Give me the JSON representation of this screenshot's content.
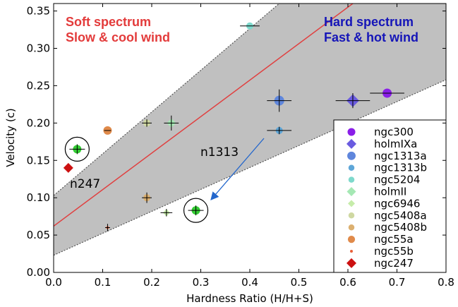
{
  "chart_data": {
    "type": "scatter",
    "title": "",
    "xlabel": "Hardness Ratio (H/H+S)",
    "ylabel": "Velocity (c)",
    "xlim": [
      0.0,
      0.8
    ],
    "ylim": [
      0.0,
      0.36
    ],
    "x_ticks": [
      0.0,
      0.1,
      0.2,
      0.3,
      0.4,
      0.5,
      0.6,
      0.7,
      0.8
    ],
    "x_tick_labels": [
      "0.0",
      "0.1",
      "0.2",
      "0.3",
      "0.4",
      "0.5",
      "0.6",
      "0.7",
      "0.8"
    ],
    "y_ticks": [
      0.0,
      0.05,
      0.1,
      0.15,
      0.2,
      0.25,
      0.3,
      0.35
    ],
    "y_tick_labels": [
      "0.00",
      "0.05",
      "0.10",
      "0.15",
      "0.20",
      "0.25",
      "0.30",
      "0.35"
    ],
    "grid": false,
    "legend_position": "bottom-right",
    "fit_line": {
      "color": "#e04040",
      "points": [
        [
          0.0,
          0.062
        ],
        [
          0.61,
          0.36
        ]
      ]
    },
    "band": {
      "color": "#c0c0c0",
      "upper": [
        [
          0.0,
          0.103
        ],
        [
          0.46,
          0.36
        ]
      ],
      "lower": [
        [
          0.0,
          0.023
        ],
        [
          0.8,
          0.258
        ]
      ]
    },
    "series": [
      {
        "name": "ngc300",
        "color": "#8a1ee8",
        "marker": "circle",
        "size": 6.5,
        "points": [
          {
            "x": 0.68,
            "y": 0.24,
            "xerr": 0.035,
            "yerr": 0.0
          }
        ]
      },
      {
        "name": "holmIXa",
        "color": "#6a5be0",
        "marker": "diamond",
        "size": 9,
        "points": [
          {
            "x": 0.61,
            "y": 0.23,
            "xerr": 0.035,
            "yerr": 0.01
          }
        ]
      },
      {
        "name": "ngc1313a",
        "color": "#5f86dc",
        "marker": "circle",
        "size": 7,
        "points": [
          {
            "x": 0.46,
            "y": 0.23,
            "xerr": 0.025,
            "yerr": 0.015
          }
        ]
      },
      {
        "name": "ngc1313b",
        "color": "#5ea6d8",
        "marker": "circle",
        "size": 5,
        "points": [
          {
            "x": 0.46,
            "y": 0.19,
            "xerr": 0.025,
            "yerr": 0.005
          }
        ]
      },
      {
        "name": "ngc5204",
        "color": "#7ed9cc",
        "marker": "circle",
        "size": 5,
        "points": [
          {
            "x": 0.4,
            "y": 0.33,
            "xerr": 0.02,
            "yerr": 0.0
          }
        ]
      },
      {
        "name": "holmII",
        "color": "#a5e8b4",
        "marker": "diamond",
        "size": 6.5,
        "points": [
          {
            "x": 0.24,
            "y": 0.2,
            "xerr": 0.015,
            "yerr": 0.01
          }
        ]
      },
      {
        "name": "ngc6946",
        "color": "#c6ecaa",
        "marker": "diamond",
        "size": 5,
        "points": [
          {
            "x": 0.23,
            "y": 0.08,
            "xerr": 0.012,
            "yerr": 0.005
          }
        ]
      },
      {
        "name": "ngc5408a",
        "color": "#cfd8a2",
        "marker": "circle",
        "size": 5,
        "points": [
          {
            "x": 0.19,
            "y": 0.2,
            "xerr": 0.01,
            "yerr": 0.005
          }
        ]
      },
      {
        "name": "ngc5408b",
        "color": "#dcb070",
        "marker": "circle",
        "size": 5,
        "points": [
          {
            "x": 0.19,
            "y": 0.1,
            "xerr": 0.01,
            "yerr": 0.007
          }
        ]
      },
      {
        "name": "ngc55a",
        "color": "#e08a4a",
        "marker": "circle",
        "size": 6,
        "points": [
          {
            "x": 0.11,
            "y": 0.19,
            "xerr": 0.007,
            "yerr": 0.0
          }
        ]
      },
      {
        "name": "ngc55b",
        "color": "#e8603a",
        "marker": "circle",
        "size": 2,
        "points": [
          {
            "x": 0.11,
            "y": 0.06,
            "xerr": 0.005,
            "yerr": 0.005
          }
        ]
      },
      {
        "name": "ngc247",
        "color": "#cc1111",
        "marker": "diamond",
        "size": 7,
        "points": [
          {
            "x": 0.03,
            "y": 0.14,
            "xerr": 0.0,
            "yerr": 0.0
          }
        ]
      }
    ],
    "highlighted_points": [
      {
        "x": 0.048,
        "y": 0.165,
        "color": "#33cc33"
      },
      {
        "x": 0.29,
        "y": 0.083,
        "color": "#33cc33"
      }
    ],
    "annotations": {
      "soft_line1": "Soft spectrum",
      "soft_line2": "Slow & cool wind",
      "hard_line1": "Hard spectrum",
      "hard_line2": "Fast & hot wind",
      "n1313": "n1313",
      "n247": "n247"
    },
    "arrow_color": "#2266cc"
  }
}
